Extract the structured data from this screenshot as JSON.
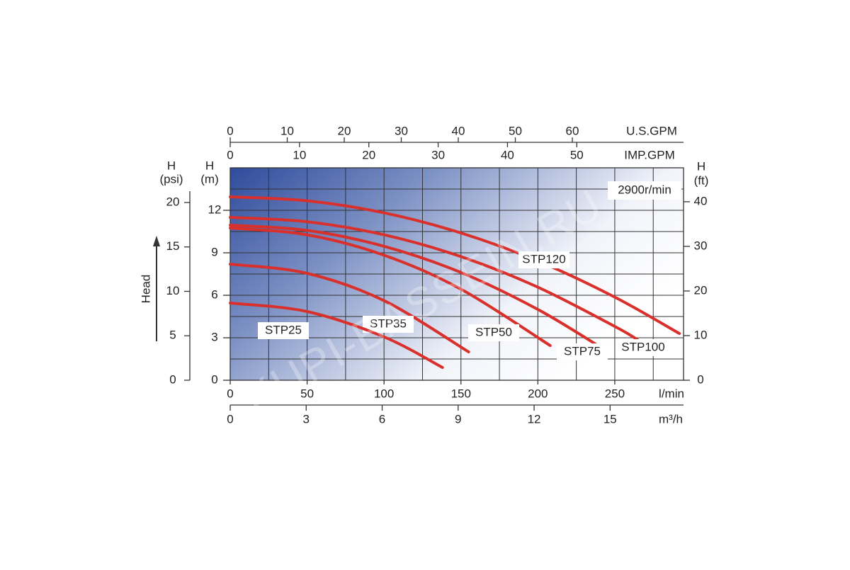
{
  "chart_data": {
    "type": "line",
    "annotation": "2900r/min",
    "watermark": "KUPI-BASSEIN.RU",
    "y_label": "Head",
    "x_label": "l/min",
    "xlim": [
      0,
      294.7
    ],
    "xticks": [
      0,
      50,
      100,
      150,
      200,
      250
    ],
    "xgrid": [
      0,
      25,
      50,
      75,
      100,
      125,
      150,
      175,
      200,
      225,
      250,
      275
    ],
    "ylim": [
      0,
      15
    ],
    "y_label_top": "H",
    "y_label_unit": "(m)",
    "yticks": [
      0,
      3,
      6,
      9,
      12
    ],
    "ygrid": [
      1.5,
      3,
      4.5,
      6,
      7.5,
      9,
      10.5,
      12,
      13.5
    ],
    "psi_axis": {
      "label": "H",
      "unit": "(psi)",
      "lim": [
        0,
        23.9
      ],
      "ticks": [
        0,
        5,
        10,
        15,
        20
      ]
    },
    "ft_axis": {
      "label": "H",
      "unit": "(ft)",
      "lim": [
        0,
        47.6
      ],
      "ticks": [
        0,
        10,
        20,
        30,
        40
      ]
    },
    "m3h_axis": {
      "label": "m³/h",
      "lim": [
        0,
        17.9
      ],
      "ticks": [
        0,
        3,
        6,
        9,
        12,
        15
      ]
    },
    "usgpm_axis": {
      "label": "U.S.GPM",
      "lim": [
        0,
        79.5
      ],
      "ticks": [
        0,
        10,
        20,
        30,
        40,
        50,
        60
      ]
    },
    "impgpm_axis": {
      "label": "IMP.GPM",
      "lim": [
        0,
        65.4
      ],
      "ticks": [
        0,
        10,
        20,
        30,
        40,
        50
      ]
    },
    "series": [
      {
        "name": "STP120",
        "color": "#d9302b",
        "x": [
          0,
          50,
          100,
          150,
          200,
          250,
          292
        ],
        "values": [
          12.95,
          12.67,
          11.82,
          10.4,
          8.42,
          5.87,
          3.3
        ]
      },
      {
        "name": "STP100",
        "color": "#d9302b",
        "x": [
          0,
          50,
          100,
          150,
          200,
          250,
          265
        ],
        "values": [
          11.5,
          11.19,
          10.27,
          8.73,
          6.57,
          3.8,
          2.85
        ]
      },
      {
        "name": "STP75",
        "color": "#d9302b",
        "x": [
          0,
          50,
          100,
          150,
          200,
          242
        ],
        "values": [
          10.95,
          10.58,
          9.46,
          7.61,
          5.0,
          2.25
        ]
      },
      {
        "name": "STP50",
        "color": "#d9302b",
        "x": [
          0,
          50,
          100,
          150,
          208
        ],
        "values": [
          10.75,
          10.27,
          8.83,
          6.43,
          2.45
        ]
      },
      {
        "name": "STP35",
        "color": "#d9302b",
        "x": [
          0,
          50,
          100,
          155
        ],
        "values": [
          8.2,
          7.55,
          5.62,
          2.0
        ]
      },
      {
        "name": "STP25",
        "color": "#d9302b",
        "x": [
          0,
          50,
          100,
          138
        ],
        "values": [
          5.45,
          4.85,
          3.06,
          0.9
        ]
      }
    ]
  }
}
